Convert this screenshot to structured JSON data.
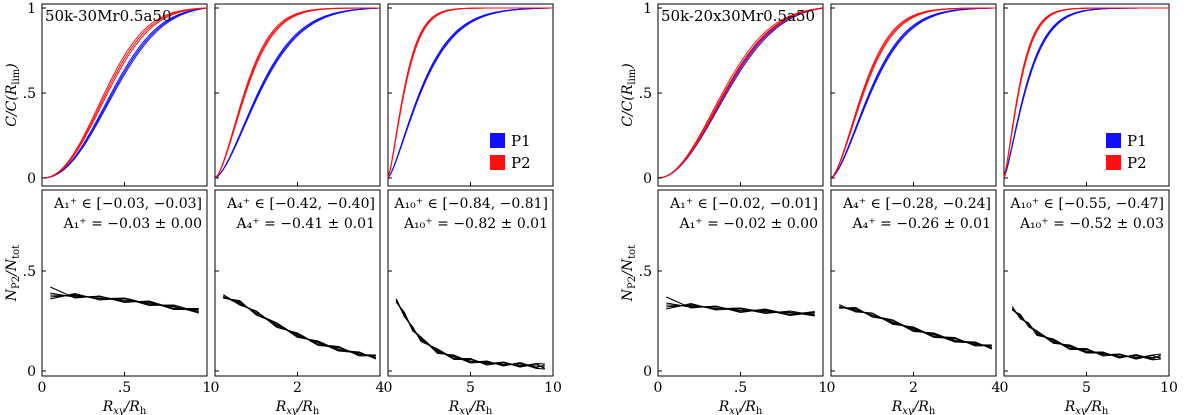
{
  "figure": {
    "description": "Two 2x3 panel groups: cumulative radial distributions of populations P1 and P2 (top) and P2 number fraction vs radius (bottom).",
    "colors": {
      "P1": "#1010ff",
      "P2": "#ff1010",
      "profile": "#000000"
    }
  },
  "chart_data": [
    {
      "group": "50k-30Mr0.5a50",
      "title": "50k-30Mr0.5a50",
      "type": "line",
      "top_ylabel": "C/C(R_lim)",
      "bottom_ylabel": "N_P2/N_tot",
      "xlabel": "Rxy/Rh",
      "legend": [
        {
          "name": "P1",
          "color": "#1010ff"
        },
        {
          "name": "P2",
          "color": "#ff1010"
        }
      ],
      "columns": [
        {
          "xlim": [
            0,
            1
          ],
          "xticks": [
            0,
            0.5,
            1
          ],
          "xtick_labels": [
            "0",
            ".5",
            "1"
          ],
          "ytop_ticks": [
            "0",
            ".5",
            "1"
          ],
          "ybot_ticks": [
            "0",
            ".5"
          ],
          "cumulative": {
            "P1_scale": 0.51,
            "P2_scale": 0.46,
            "shape": 2.2
          },
          "annotation": {
            "range": "A₁⁺ ∈ [−0.03, −0.03]",
            "value": "A₁⁺ = −0.03 ± 0.00"
          },
          "fraction": {
            "x": [
              0.05,
              0.2,
              0.35,
              0.5,
              0.65,
              0.8,
              0.95
            ],
            "y": [
              0.38,
              0.375,
              0.365,
              0.355,
              0.34,
              0.32,
              0.3
            ]
          }
        },
        {
          "xlim": [
            0,
            4
          ],
          "xticks": [
            0,
            2,
            4
          ],
          "xtick_labels": [
            "0",
            "2",
            "4"
          ],
          "ytop_ticks": [],
          "ybot_ticks": [],
          "cumulative": {
            "P1_scale": 1.35,
            "P2_scale": 0.92,
            "shape": 1.55
          },
          "annotation": {
            "range": "A₄⁺ ∈ [−0.42, −0.40]",
            "value": "A₄⁺ = −0.41 ± 0.01"
          },
          "fraction": {
            "x": [
              0.2,
              0.6,
              1.0,
              1.5,
              2.0,
              2.5,
              3.0,
              3.5,
              3.9
            ],
            "y": [
              0.37,
              0.34,
              0.29,
              0.23,
              0.18,
              0.14,
              0.11,
              0.085,
              0.07
            ]
          }
        },
        {
          "xlim": [
            0,
            10
          ],
          "xticks": [
            0,
            5,
            10
          ],
          "xtick_labels": [
            "0",
            "5",
            "10"
          ],
          "ytop_ticks": [],
          "ybot_ticks": [],
          "cumulative": {
            "P1_scale": 2.55,
            "P2_scale": 1.25,
            "shape": 1.35
          },
          "annotation": {
            "range": "A₁₀⁺ ∈ [−0.84, −0.81]",
            "value": "A₁₀⁺ = −0.82 ± 0.01"
          },
          "fraction": {
            "x": [
              0.5,
              1.0,
              1.5,
              2.0,
              3.0,
              4.0,
              5.0,
              6.0,
              7.0,
              8.0,
              9.0,
              9.5
            ],
            "y": [
              0.35,
              0.28,
              0.21,
              0.16,
              0.1,
              0.07,
              0.05,
              0.04,
              0.035,
              0.03,
              0.025,
              0.02
            ]
          }
        }
      ]
    },
    {
      "group": "50k-20x30Mr0.5a50",
      "title": "50k-20x30Mr0.5a50",
      "type": "line",
      "top_ylabel": "C/C(R_lim)",
      "bottom_ylabel": "N_P2/N_tot",
      "xlabel": "Rxy/Rh",
      "legend": [
        {
          "name": "P1",
          "color": "#1010ff"
        },
        {
          "name": "P2",
          "color": "#ff1010"
        }
      ],
      "columns": [
        {
          "xlim": [
            0,
            1
          ],
          "xticks": [
            0,
            0.5,
            1
          ],
          "xtick_labels": [
            "0",
            ".5",
            "1"
          ],
          "ytop_ticks": [
            "0",
            ".5",
            "1"
          ],
          "ybot_ticks": [
            "0",
            ".5"
          ],
          "cumulative": {
            "P1_scale": 0.5,
            "P2_scale": 0.485,
            "shape": 2.0
          },
          "annotation": {
            "range": "A₁⁺ ∈ [−0.02, −0.01]",
            "value": "A₁⁺ = −0.02 ± 0.00"
          },
          "fraction": {
            "x": [
              0.05,
              0.2,
              0.35,
              0.5,
              0.65,
              0.8,
              0.95
            ],
            "y": [
              0.33,
              0.325,
              0.315,
              0.305,
              0.3,
              0.29,
              0.285
            ]
          }
        },
        {
          "xlim": [
            0,
            4
          ],
          "xticks": [
            0,
            2,
            4
          ],
          "xtick_labels": [
            "0",
            "2",
            "4"
          ],
          "ytop_ticks": [],
          "ybot_ticks": [],
          "cumulative": {
            "P1_scale": 1.2,
            "P2_scale": 0.98,
            "shape": 1.55
          },
          "annotation": {
            "range": "A₄⁺ ∈ [−0.28, −0.24]",
            "value": "A₄⁺ = −0.26 ± 0.01"
          },
          "fraction": {
            "x": [
              0.2,
              0.6,
              1.0,
              1.5,
              2.0,
              2.5,
              3.0,
              3.5,
              3.9
            ],
            "y": [
              0.32,
              0.305,
              0.28,
              0.245,
              0.21,
              0.18,
              0.155,
              0.135,
              0.12
            ]
          }
        },
        {
          "xlim": [
            0,
            10
          ],
          "xticks": [
            0,
            5,
            10
          ],
          "xtick_labels": [
            "0",
            "5",
            "10"
          ],
          "ytop_ticks": [],
          "ybot_ticks": [],
          "cumulative": {
            "P1_scale": 1.65,
            "P2_scale": 1.15,
            "shape": 1.3
          },
          "annotation": {
            "range": "A₁₀⁺ ∈ [−0.55, −0.47]",
            "value": "A₁₀⁺ = −0.52 ± 0.03"
          },
          "fraction": {
            "x": [
              0.5,
              1.0,
              1.5,
              2.0,
              3.0,
              4.0,
              5.0,
              6.0,
              7.0,
              8.0,
              9.0,
              9.5
            ],
            "y": [
              0.31,
              0.27,
              0.23,
              0.19,
              0.15,
              0.12,
              0.1,
              0.085,
              0.075,
              0.07,
              0.068,
              0.07
            ]
          }
        }
      ]
    }
  ]
}
